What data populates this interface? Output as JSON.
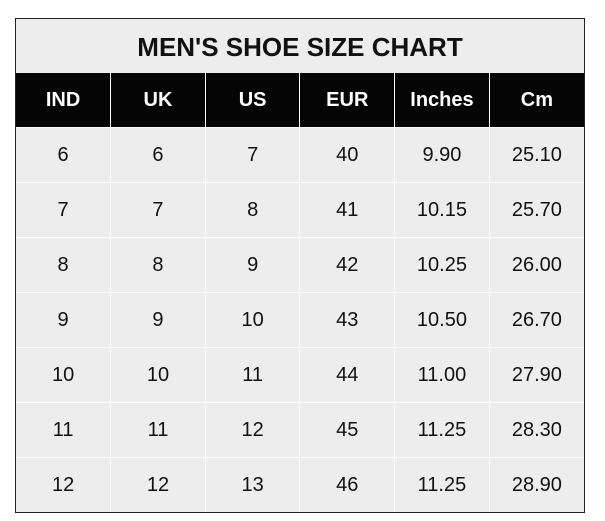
{
  "title": "MEN'S SHOE SIZE CHART",
  "headers": [
    "IND",
    "UK",
    "US",
    "EUR",
    "Inches",
    "Cm"
  ],
  "rows": [
    [
      "6",
      "6",
      "7",
      "40",
      "9.90",
      "25.10"
    ],
    [
      "7",
      "7",
      "8",
      "41",
      "10.15",
      "25.70"
    ],
    [
      "8",
      "8",
      "9",
      "42",
      "10.25",
      "26.00"
    ],
    [
      "9",
      "9",
      "10",
      "43",
      "10.50",
      "26.70"
    ],
    [
      "10",
      "10",
      "11",
      "44",
      "11.00",
      "27.90"
    ],
    [
      "11",
      "11",
      "12",
      "45",
      "11.25",
      "28.30"
    ],
    [
      "12",
      "12",
      "13",
      "46",
      "11.25",
      "28.90"
    ]
  ],
  "colors": {
    "header_bg": "#050505",
    "header_text": "#ffffff",
    "cell_bg": "#ededed",
    "border": "#ffffff"
  }
}
